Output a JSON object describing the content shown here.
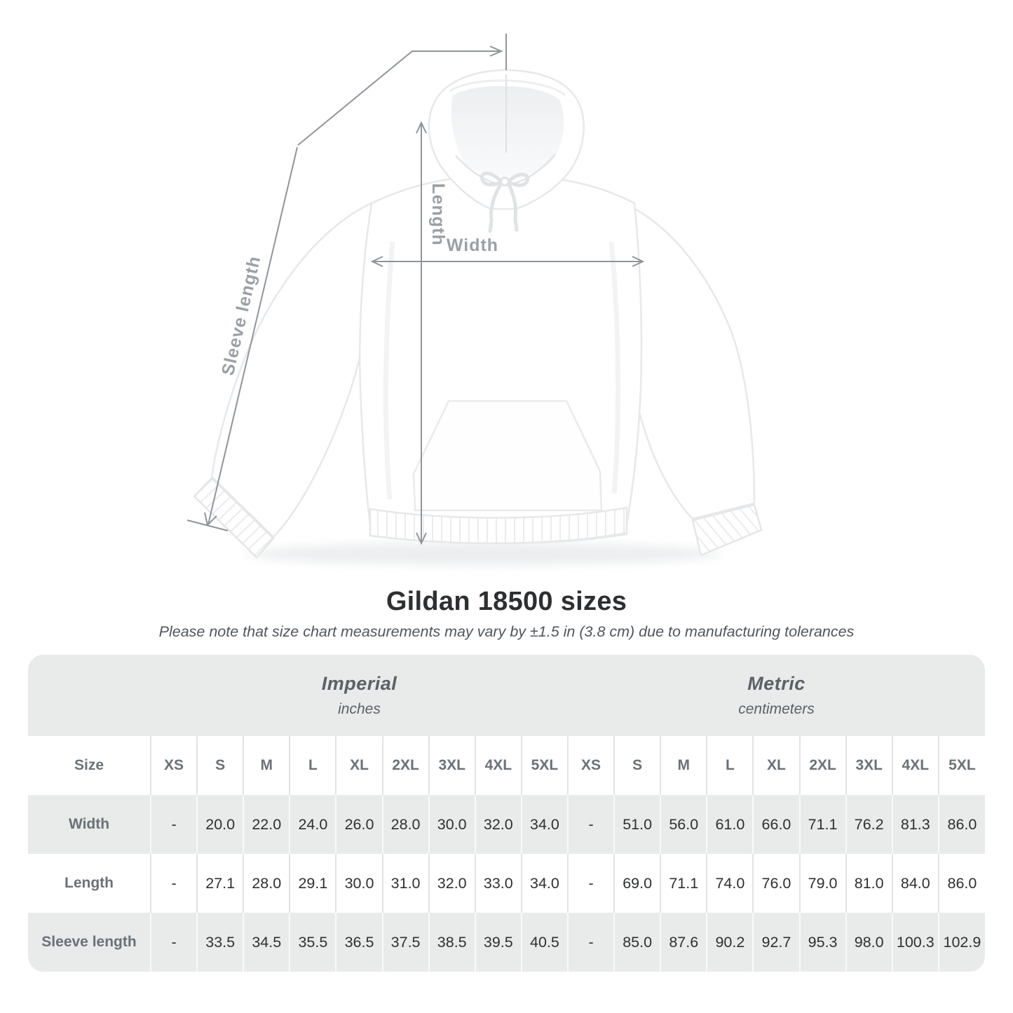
{
  "header": {
    "title": "Gildan 18500 sizes",
    "subtitle": "Please note that size chart measurements may vary by ±1.5 in (3.8 cm) due to manufacturing tolerances"
  },
  "diagram": {
    "labels": {
      "length": "Length",
      "width": "Width",
      "sleeve": "Sleeve length"
    }
  },
  "size_table": {
    "size_label": "Size",
    "groups": [
      {
        "name": "Imperial",
        "unit": "inches"
      },
      {
        "name": "Metric",
        "unit": "centimeters"
      }
    ],
    "sizes": [
      "XS",
      "S",
      "M",
      "L",
      "XL",
      "2XL",
      "3XL",
      "4XL",
      "5XL"
    ],
    "rows": [
      {
        "label": "Width",
        "imperial": [
          "-",
          "20.0",
          "22.0",
          "24.0",
          "26.0",
          "28.0",
          "30.0",
          "32.0",
          "34.0"
        ],
        "metric": [
          "-",
          "51.0",
          "56.0",
          "61.0",
          "66.0",
          "71.1",
          "76.2",
          "81.3",
          "86.0"
        ]
      },
      {
        "label": "Length",
        "imperial": [
          "-",
          "27.1",
          "28.0",
          "29.1",
          "30.0",
          "31.0",
          "32.0",
          "33.0",
          "34.0"
        ],
        "metric": [
          "-",
          "69.0",
          "71.1",
          "74.0",
          "76.0",
          "79.0",
          "81.0",
          "84.0",
          "86.0"
        ]
      },
      {
        "label": "Sleeve length",
        "imperial": [
          "-",
          "33.5",
          "34.5",
          "35.5",
          "36.5",
          "37.5",
          "38.5",
          "39.5",
          "40.5"
        ],
        "metric": [
          "-",
          "85.0",
          "87.6",
          "90.2",
          "92.7",
          "95.3",
          "98.0",
          "100.3",
          "102.9"
        ]
      }
    ]
  },
  "colors": {
    "table_band_gray": "#e9eaea",
    "muted_label_gray": "#6a7177",
    "value_text": "#2e3032",
    "diagram_label_gray": "#9aa0a6",
    "dimension_line_gray": "#8f959b"
  }
}
